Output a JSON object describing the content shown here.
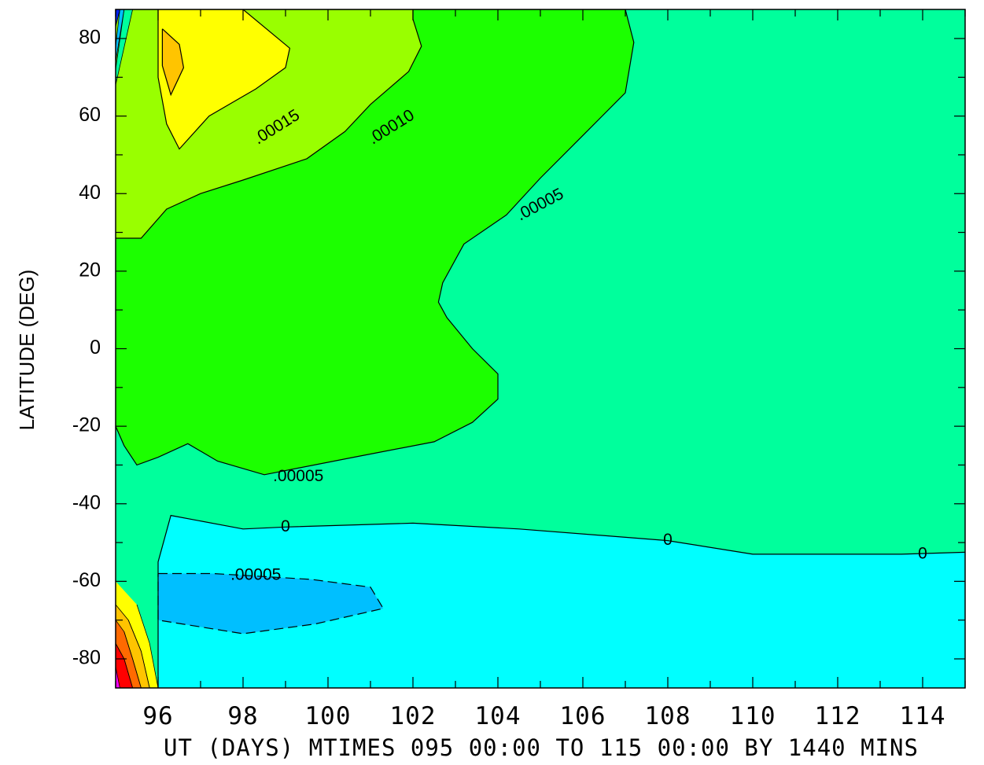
{
  "chart_data": {
    "type": "contour",
    "title": "",
    "xlabel": "UT (DAYS) MTIMES 095 00:00 TO 115 00:00 BY 1440 MINS",
    "ylabel": "LATITUDE (DEG)",
    "xlim": [
      95,
      115
    ],
    "ylim": [
      -87.5,
      87.5
    ],
    "x_ticks": [
      96,
      98,
      100,
      102,
      104,
      106,
      108,
      110,
      112,
      114
    ],
    "x_tick_labels": [
      "96",
      "98",
      "100",
      "102",
      "104",
      "106",
      "108",
      "110",
      "112",
      "114"
    ],
    "y_ticks": [
      80,
      60,
      40,
      20,
      0,
      -20,
      -40,
      -60,
      -80
    ],
    "y_tick_labels": [
      "80",
      "60",
      "40",
      "20",
      "0",
      "-20",
      "-40",
      "-60",
      "-80"
    ],
    "contour_labels": [
      {
        "text": ".00015",
        "x": 98.8,
        "y": 57
      },
      {
        "text": ".00010",
        "x": 101.5,
        "y": 57
      },
      {
        "text": ".00005",
        "x": 105.0,
        "y": 37
      },
      {
        "text": ".00005",
        "x": 99.3,
        "y": -33
      },
      {
        "text": "0",
        "x": 99.0,
        "y": -46
      },
      {
        "text": "0",
        "x": 108.0,
        "y": -49.5
      },
      {
        "text": "0",
        "x": 114.0,
        "y": -53
      },
      {
        "text": ".00005",
        "x": 98.3,
        "y": -58.5
      }
    ],
    "fill_levels": [
      {
        "level": "below -.00005",
        "color": "#00bfff"
      },
      {
        "level": "-.00005 to 0",
        "color": "#00ffff"
      },
      {
        "level": "0 to .00005",
        "color": "#00ff9c"
      },
      {
        "level": ".00005 to .00010",
        "color": "#1cff00"
      },
      {
        "level": ".00010 to .00015",
        "color": "#99ff00"
      },
      {
        "level": ".00015 to .00020",
        "color": "#ffff00"
      },
      {
        "level": "above .00020",
        "color": "#ffc400"
      }
    ],
    "regions": {
      "base": {
        "color": "#00ff9c",
        "points": [
          [
            95,
            -87.5
          ],
          [
            115,
            -87.5
          ],
          [
            115,
            87.5
          ],
          [
            95,
            87.5
          ]
        ]
      },
      "green_05": {
        "color": "#1cff00",
        "points": [
          [
            95,
            87.5
          ],
          [
            107,
            87.5
          ],
          [
            107.2,
            79
          ],
          [
            107,
            66
          ],
          [
            106,
            55
          ],
          [
            105,
            44
          ],
          [
            104.2,
            34.5
          ],
          [
            103.2,
            27
          ],
          [
            102.7,
            17
          ],
          [
            102.6,
            12
          ],
          [
            102.8,
            8
          ],
          [
            103.4,
            0
          ],
          [
            104.0,
            -6.5
          ],
          [
            104.0,
            -13
          ],
          [
            103.4,
            -19
          ],
          [
            102.5,
            -24
          ],
          [
            100.6,
            -28
          ],
          [
            98.5,
            -32.5
          ],
          [
            97.4,
            -29
          ],
          [
            96.7,
            -24.5
          ],
          [
            96.0,
            -28
          ],
          [
            95.5,
            -30
          ],
          [
            95.2,
            -25
          ],
          [
            95,
            -20
          ]
        ]
      },
      "lime_10": {
        "color": "#99ff00",
        "points": [
          [
            95,
            87.5
          ],
          [
            102,
            87.5
          ],
          [
            102.0,
            85
          ],
          [
            102.2,
            78
          ],
          [
            101.9,
            71.5
          ],
          [
            101.0,
            63
          ],
          [
            100.4,
            56
          ],
          [
            99.5,
            49
          ],
          [
            98.0,
            43.5
          ],
          [
            97.0,
            40
          ],
          [
            96.2,
            36
          ],
          [
            95.6,
            28.5
          ],
          [
            95,
            28.5
          ]
        ]
      },
      "yellow_15": {
        "color": "#ffff00",
        "points": [
          [
            96.0,
            87.5
          ],
          [
            98.0,
            87.5
          ],
          [
            99.1,
            77.5
          ],
          [
            99.0,
            72.5
          ],
          [
            98.3,
            67
          ],
          [
            97.2,
            60
          ],
          [
            96.5,
            51.5
          ],
          [
            96.2,
            58
          ],
          [
            96.0,
            70
          ],
          [
            96.0,
            80
          ]
        ]
      },
      "orange_20": {
        "color": "#ffc400",
        "points": [
          [
            96.1,
            82.5
          ],
          [
            96.5,
            78.5
          ],
          [
            96.6,
            72.5
          ],
          [
            96.3,
            65.5
          ],
          [
            96.1,
            73
          ]
        ]
      },
      "cyan_0": {
        "color": "#00ffff",
        "points": [
          [
            96.0,
            -87.5
          ],
          [
            115,
            -87.5
          ],
          [
            115,
            -52.5
          ],
          [
            113.5,
            -53
          ],
          [
            110.0,
            -53
          ],
          [
            108.0,
            -49.5
          ],
          [
            104.5,
            -46.5
          ],
          [
            102.0,
            -45
          ],
          [
            99.0,
            -46
          ],
          [
            98.0,
            -46.5
          ],
          [
            96.3,
            -43
          ],
          [
            96.0,
            -55
          ],
          [
            96.0,
            -80
          ]
        ]
      },
      "blue_neg05": {
        "color": "#00bfff",
        "points": [
          [
            96.0,
            -58
          ],
          [
            97.3,
            -58
          ],
          [
            99.6,
            -59.5
          ],
          [
            101.0,
            -61.5
          ],
          [
            101.3,
            -67
          ],
          [
            99.7,
            -71
          ],
          [
            98.0,
            -73.5
          ],
          [
            96.0,
            -70
          ]
        ]
      }
    },
    "edge_bands": [
      {
        "color": "#0022ff",
        "points": [
          [
            95,
            83
          ],
          [
            95.1,
            87.5
          ],
          [
            95,
            87.5
          ]
        ]
      },
      {
        "color": "#00bfff",
        "points": [
          [
            95,
            78
          ],
          [
            95.1,
            87.5
          ],
          [
            95.2,
            87.5
          ],
          [
            95,
            74
          ]
        ]
      },
      {
        "color": "#00ff9c",
        "points": [
          [
            95,
            72
          ],
          [
            95.2,
            87.5
          ],
          [
            95.4,
            87.5
          ],
          [
            95,
            68
          ]
        ]
      },
      {
        "color": "#ff0000",
        "points": [
          [
            95,
            -76
          ],
          [
            95.2,
            -80
          ],
          [
            95.4,
            -87.5
          ],
          [
            95,
            -87.5
          ]
        ]
      },
      {
        "color": "#ff00ff",
        "points": [
          [
            95,
            -82
          ],
          [
            95.1,
            -87.5
          ],
          [
            95,
            -87.5
          ]
        ]
      },
      {
        "color": "#ff6a00",
        "points": [
          [
            95.2,
            -73
          ],
          [
            95.4,
            -80
          ],
          [
            95.6,
            -87.5
          ],
          [
            95.4,
            -87.5
          ],
          [
            95.2,
            -80
          ],
          [
            95,
            -76
          ],
          [
            95,
            -70
          ]
        ]
      },
      {
        "color": "#ffc400",
        "points": [
          [
            95.3,
            -70
          ],
          [
            95.6,
            -78
          ],
          [
            95.8,
            -87.5
          ],
          [
            95.6,
            -87.5
          ],
          [
            95.4,
            -80
          ],
          [
            95.2,
            -73
          ],
          [
            95,
            -70
          ],
          [
            95,
            -66
          ]
        ]
      },
      {
        "color": "#ffff00",
        "points": [
          [
            95.5,
            -66
          ],
          [
            95.8,
            -76
          ],
          [
            96.0,
            -87.5
          ],
          [
            95.8,
            -87.5
          ],
          [
            95.6,
            -78
          ],
          [
            95.3,
            -70
          ],
          [
            95,
            -66
          ],
          [
            95,
            -60
          ]
        ]
      }
    ],
    "contour_lines": [
      {
        "points": [
          [
            95,
            87.5
          ],
          [
            107,
            87.5
          ],
          [
            107.2,
            79
          ],
          [
            107,
            66
          ],
          [
            106,
            55
          ],
          [
            105,
            44
          ],
          [
            104.2,
            34.5
          ],
          [
            103.2,
            27
          ],
          [
            102.7,
            17
          ],
          [
            102.6,
            12
          ],
          [
            102.8,
            8
          ],
          [
            103.4,
            0
          ],
          [
            104.0,
            -6.5
          ],
          [
            104.0,
            -13
          ],
          [
            103.4,
            -19
          ],
          [
            102.5,
            -24
          ],
          [
            100.6,
            -28
          ],
          [
            98.5,
            -32.5
          ],
          [
            97.4,
            -29
          ],
          [
            96.7,
            -24.5
          ],
          [
            96.0,
            -28
          ],
          [
            95.5,
            -30
          ],
          [
            95.2,
            -25
          ],
          [
            95,
            -20
          ]
        ],
        "dashed": false
      },
      {
        "points": [
          [
            102,
            87.5
          ],
          [
            102.0,
            85
          ],
          [
            102.2,
            78
          ],
          [
            101.9,
            71.5
          ],
          [
            101.0,
            63
          ],
          [
            100.4,
            56
          ],
          [
            99.5,
            49
          ],
          [
            98.0,
            43.5
          ],
          [
            97.0,
            40
          ],
          [
            96.2,
            36
          ],
          [
            95.6,
            28.5
          ],
          [
            95,
            28.5
          ]
        ],
        "dashed": false
      },
      {
        "points": [
          [
            98.0,
            87.5
          ],
          [
            99.1,
            77.5
          ],
          [
            99.0,
            72.5
          ],
          [
            98.3,
            67
          ],
          [
            97.2,
            60
          ],
          [
            96.5,
            51.5
          ],
          [
            96.2,
            58
          ],
          [
            96.0,
            70
          ],
          [
            96.0,
            80
          ],
          [
            96.0,
            87.5
          ]
        ],
        "dashed": false
      },
      {
        "points": [
          [
            96.1,
            82.5
          ],
          [
            96.5,
            78.5
          ],
          [
            96.6,
            72.5
          ],
          [
            96.3,
            65.5
          ],
          [
            96.1,
            73
          ],
          [
            96.1,
            82.5
          ]
        ],
        "dashed": false
      },
      {
        "points": [
          [
            96.0,
            -87.5
          ],
          [
            96.0,
            -80
          ],
          [
            96.0,
            -55
          ],
          [
            96.3,
            -43
          ],
          [
            98.0,
            -46.5
          ],
          [
            99.0,
            -46
          ],
          [
            102.0,
            -45
          ],
          [
            104.5,
            -46.5
          ],
          [
            108.0,
            -49.5
          ],
          [
            110.0,
            -53
          ],
          [
            113.5,
            -53
          ],
          [
            115,
            -52.5
          ]
        ],
        "dashed": false
      },
      {
        "points": [
          [
            96.0,
            -58
          ],
          [
            97.3,
            -58
          ],
          [
            99.6,
            -59.5
          ],
          [
            101.0,
            -61.5
          ],
          [
            101.3,
            -67
          ],
          [
            99.7,
            -71
          ],
          [
            98.0,
            -73.5
          ],
          [
            96.0,
            -70
          ],
          [
            96.0,
            -58
          ]
        ],
        "dashed": true
      }
    ]
  }
}
